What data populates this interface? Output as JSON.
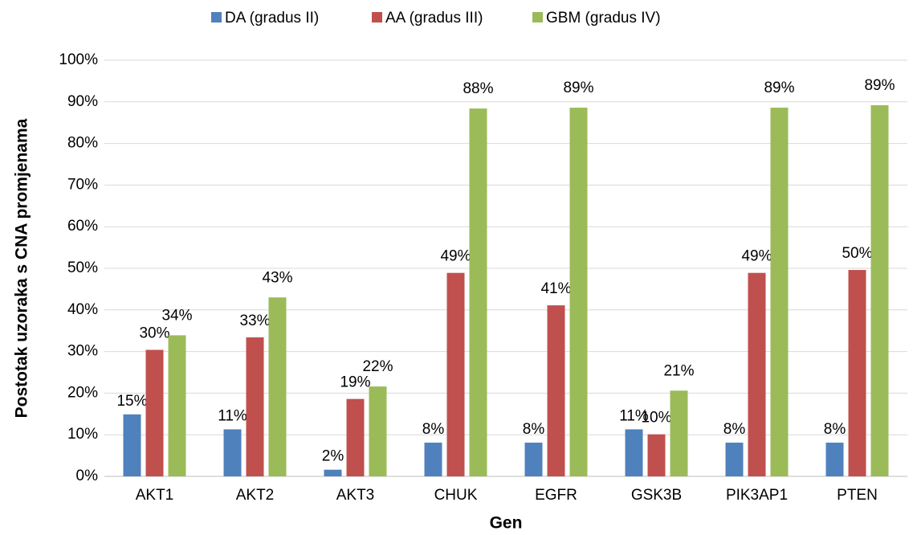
{
  "chart_data": {
    "type": "bar",
    "y_label": "Postotak uzoraka s CNA promjenama",
    "x_label": "Gen",
    "categories": [
      "AKT1",
      "AKT2",
      "AKT3",
      "CHUK",
      "EGFR",
      "GSK3B",
      "PIK3AP1",
      "PTEN"
    ],
    "series": [
      {
        "name": "DA (gradus II)",
        "color": "#4f81bd",
        "values": [
          14.9,
          11.3,
          1.6,
          8.1,
          8.1,
          11.3,
          8.1,
          8.1
        ],
        "value_labels": [
          "15%",
          "11%",
          "2%",
          "8%",
          "8%",
          "11%",
          "8%",
          "8%"
        ]
      },
      {
        "name": "AA (gradus III)",
        "color": "#c0504d",
        "values": [
          30.4,
          33.4,
          18.6,
          48.9,
          41.1,
          10.1,
          48.9,
          49.6
        ],
        "value_labels": [
          "30%",
          "33%",
          "19%",
          "49%",
          "41%",
          "10%",
          "49%",
          "50%"
        ]
      },
      {
        "name": "GBM (gradus IV)",
        "color": "#9bbb59",
        "values": [
          33.9,
          43.0,
          21.6,
          88.4,
          88.6,
          20.6,
          88.6,
          89.2
        ],
        "value_labels": [
          "34%",
          "43%",
          "22%",
          "88%",
          "89%",
          "21%",
          "89%",
          "89%"
        ]
      }
    ],
    "ylim": [
      0,
      100
    ],
    "yticks": [
      {
        "value": 0,
        "label": "0%"
      },
      {
        "value": 10,
        "label": "10%"
      },
      {
        "value": 20,
        "label": "20%"
      },
      {
        "value": 30,
        "label": "30%"
      },
      {
        "value": 40,
        "label": "40%"
      },
      {
        "value": 50,
        "label": "50%"
      },
      {
        "value": 60,
        "label": "60%"
      },
      {
        "value": 70,
        "label": "70%"
      },
      {
        "value": 80,
        "label": "80%"
      },
      {
        "value": 90,
        "label": "90%"
      },
      {
        "value": 100,
        "label": "100%"
      }
    ],
    "grid": true,
    "legend": "top"
  }
}
